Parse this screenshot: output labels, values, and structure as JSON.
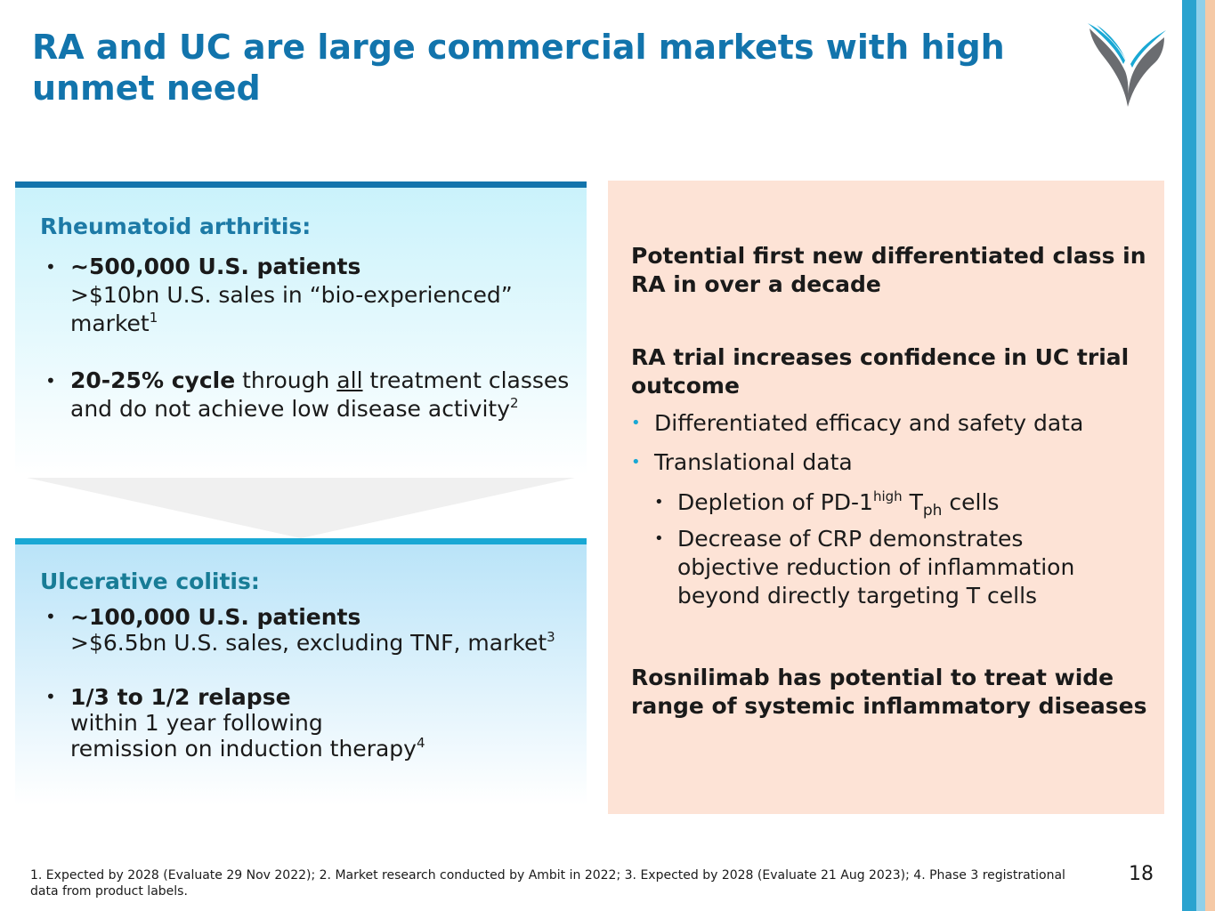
{
  "title": "RA and UC are large commercial markets with high unmet need",
  "ra": {
    "heading": "Rheumatoid arthritis:",
    "b1_bold": "~500,000 U.S. patients",
    "b1_text": ">$10bn U.S. sales in “bio-experienced” market",
    "b1_sup": "1",
    "b2_bold": "20-25% cycle",
    "b2_pre": " through ",
    "b2_under": "all",
    "b2_post": " treatment classes and do not achieve low disease activity",
    "b2_sup": "2"
  },
  "uc": {
    "heading": "Ulcerative colitis:",
    "b1_bold": "~100,000 U.S. patients",
    "b1_text": ">$6.5bn U.S. sales, excluding TNF, market",
    "b1_sup": "3",
    "b2_bold": "1/3 to 1/2 relapse",
    "b2_line1": "within 1 year following",
    "b2_line2": "remission on induction therapy",
    "b2_sup": "4"
  },
  "right": {
    "p1": "Potential first new differentiated class in RA in over a decade",
    "p2": "RA trial increases confidence in UC trial outcome",
    "bullet1": "Differentiated efficacy and safety data",
    "bullet2": "Translational data",
    "sub1_pre": "Depletion of PD-1",
    "sub1_sup": "high",
    "sub1_t": " T",
    "sub1_sub": "ph",
    "sub1_post": " cells",
    "sub2": "Decrease of CRP demonstrates objective reduction of inflammation beyond directly targeting T cells",
    "p3": "Rosnilimab has potential to treat wide range of systemic inflammatory diseases"
  },
  "footnote": "1. Expected by 2028 (Evaluate 29 Nov 2022); 2. Market research conducted by Ambit in 2022; 3. Expected by 2028 (Evaluate 21 Aug 2023); 4. Phase 3 registrational data from product labels.",
  "page_number": "18",
  "colors": {
    "title": "#1274ac",
    "ra_bar": "#1274ac",
    "uc_bar": "#19a8d4",
    "right_panel": "#fde3d6",
    "bullet_accent": "#19a8d4"
  },
  "icons": {
    "logo": "company-logo",
    "bullet": "bullet-dot"
  }
}
